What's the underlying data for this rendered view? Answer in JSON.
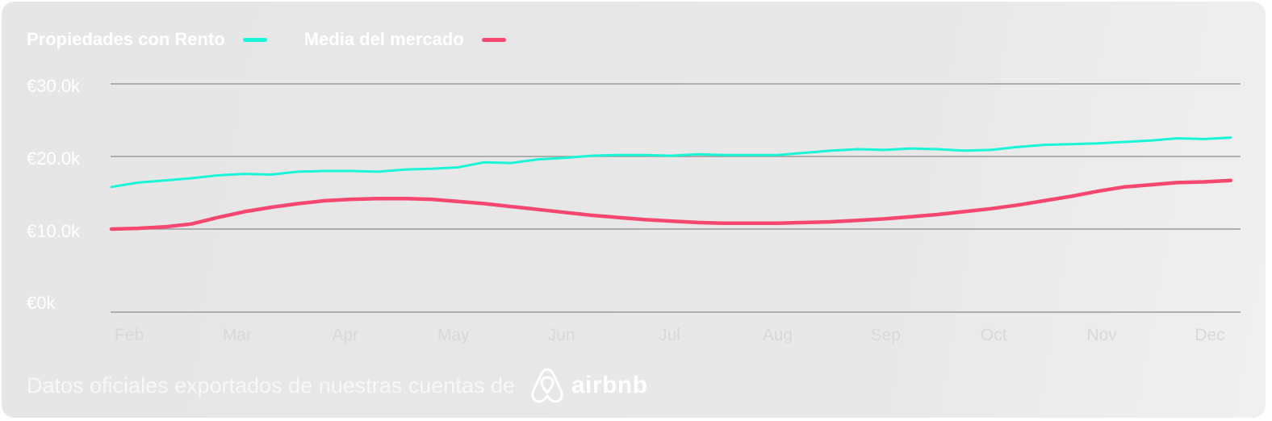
{
  "legend": {
    "series_a_label": "Propiedades con Rento",
    "series_b_label": "Media del mercado"
  },
  "footer": {
    "text": "Datos oficiales exportados de nuestras cuentas de",
    "brand": "airbnb",
    "logo_icon": "airbnb-logo-icon"
  },
  "colors": {
    "series_a": "#19f5d6",
    "series_b": "#f5476f",
    "grid": "#9a9a9a",
    "axis_text": "#ffffff",
    "tick_text": "#d8d8d8"
  },
  "chart_data": {
    "type": "line",
    "title": "",
    "xlabel": "",
    "ylabel": "",
    "ylim": [
      0,
      30000
    ],
    "y_ticks": [
      {
        "value": 30000,
        "label": "€30.0k"
      },
      {
        "value": 20000,
        "label": "€20.0k"
      },
      {
        "value": 10000,
        "label": "€10.0k"
      },
      {
        "value": 0,
        "label": "€0k"
      }
    ],
    "x_ticks": [
      "Feb",
      "Mar",
      "Apr",
      "May",
      "Jun",
      "Jul",
      "Aug",
      "Sep",
      "Oct",
      "Nov",
      "Dec"
    ],
    "grid": true,
    "legend_position": "top-left",
    "series": [
      {
        "name": "Propiedades con Rento",
        "x": [
          0,
          0.25,
          0.5,
          0.75,
          1,
          1.25,
          1.5,
          1.75,
          2,
          2.25,
          2.5,
          2.75,
          3,
          3.25,
          3.5,
          3.75,
          4,
          4.25,
          4.5,
          4.75,
          5,
          5.25,
          5.5,
          5.75,
          6,
          6.25,
          6.5,
          6.75,
          7,
          7.25,
          7.5,
          7.75,
          8,
          8.25,
          8.5,
          8.75,
          9,
          9.25,
          9.5,
          9.75,
          10,
          10.25,
          10.5
        ],
        "values": [
          15800,
          16400,
          16700,
          17000,
          17400,
          17600,
          17500,
          17900,
          18000,
          18000,
          17900,
          18200,
          18300,
          18500,
          19200,
          19100,
          19600,
          19800,
          20100,
          20200,
          20200,
          20100,
          20300,
          20200,
          20200,
          20200,
          20500,
          20800,
          21000,
          20900,
          21100,
          21000,
          20800,
          20900,
          21300,
          21600,
          21700,
          21800,
          22000,
          22200,
          22500,
          22400,
          22600
        ]
      },
      {
        "name": "Media del mercado",
        "x": [
          0,
          0.25,
          0.5,
          0.75,
          1,
          1.25,
          1.5,
          1.75,
          2,
          2.25,
          2.5,
          2.75,
          3,
          3.25,
          3.5,
          3.75,
          4,
          4.25,
          4.5,
          4.75,
          5,
          5.25,
          5.5,
          5.75,
          6,
          6.25,
          6.5,
          6.75,
          7,
          7.25,
          7.5,
          7.75,
          8,
          8.25,
          8.5,
          8.75,
          9,
          9.25,
          9.5,
          9.75,
          10,
          10.25,
          10.5
        ],
        "values": [
          10000,
          10100,
          10300,
          10700,
          11600,
          12400,
          13000,
          13500,
          13900,
          14100,
          14200,
          14200,
          14100,
          13800,
          13500,
          13100,
          12700,
          12300,
          11900,
          11600,
          11300,
          11100,
          10900,
          10800,
          10800,
          10800,
          10900,
          11000,
          11200,
          11400,
          11700,
          12000,
          12400,
          12800,
          13300,
          13900,
          14500,
          15200,
          15800,
          16100,
          16400,
          16500,
          16700
        ]
      }
    ]
  }
}
